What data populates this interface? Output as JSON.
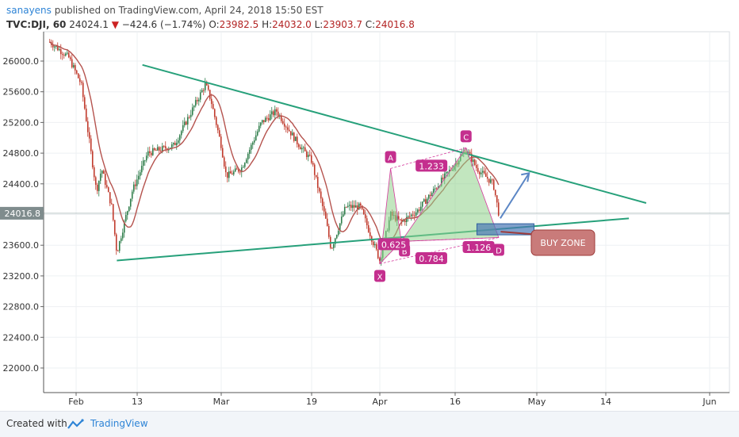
{
  "header": {
    "author": "sanayens",
    "published_text": "published on TradingView.com, April 24, 2018 15:50 EST"
  },
  "symbol_bar": {
    "symbol": "TVC:DJI, 60",
    "last": "24024.1",
    "change": "−424.6 (−1.74%)",
    "open_label": "O:",
    "open": "23982.5",
    "high_label": "H:",
    "high": "24032.0",
    "low_label": "L:",
    "low": "23903.7",
    "close_label": "C:",
    "close": "24016.8"
  },
  "footer": {
    "created_with": "Created with",
    "brand": "TradingView"
  },
  "colors": {
    "trendline": "#26a07a",
    "candle_up": "#2e7d4a",
    "candle_down": "#c0392b",
    "moving_average": "#b5534e",
    "pattern_fill": "#8fd28a",
    "pattern_edge": "#d53a9d",
    "label_bg": "#c42f8e",
    "buy_zone_box": "#4a78b5",
    "buy_zone_callout": "#c97b7a",
    "projection_arrow": "#5b86c5",
    "price_tag": "#7f8c8d"
  },
  "chart_data": {
    "type": "candlestick",
    "title": "TVC:DJI, 60",
    "ylim": [
      21600,
      26400
    ],
    "y_ticks": [
      "26000.0",
      "25600.0",
      "25200.0",
      "24800.0",
      "24400.0",
      "24000.0",
      "23600.0",
      "23200.0",
      "22800.0",
      "22400.0",
      "22000.0"
    ],
    "x_ticks": [
      "Feb",
      "13",
      "Mar",
      "19",
      "Apr",
      "16",
      "May",
      "14",
      "Jun"
    ],
    "current_price_label": "24016.8",
    "current_price": 24016.8,
    "price_path": [
      [
        "Jan 25",
        26250
      ],
      [
        "Jan 30",
        26050
      ],
      [
        "Feb 2",
        25700
      ],
      [
        "Feb 5",
        24300
      ],
      [
        "Feb 6",
        24600
      ],
      [
        "Feb 8",
        24100
      ],
      [
        "Feb 9",
        23500
      ],
      [
        "Feb 12",
        24300
      ],
      [
        "Feb 15",
        24800
      ],
      [
        "Feb 20",
        24900
      ],
      [
        "Feb 23",
        25300
      ],
      [
        "Feb 26",
        25700
      ],
      [
        "Feb 27",
        25500
      ],
      [
        "Mar 1",
        24900
      ],
      [
        "Mar 2",
        24500
      ],
      [
        "Mar 5",
        24600
      ],
      [
        "Mar 9",
        25200
      ],
      [
        "Mar 12",
        25350
      ],
      [
        "Mar 16",
        24950
      ],
      [
        "Mar 19",
        24700
      ],
      [
        "Mar 22",
        23900
      ],
      [
        "Mar 23",
        23550
      ],
      [
        "Mar 26",
        24100
      ],
      [
        "Mar 29",
        24100
      ],
      [
        "Apr 2",
        23400
      ],
      [
        "Apr 4",
        24000
      ],
      [
        "Apr 6",
        23900
      ],
      [
        "Apr 9",
        24050
      ],
      [
        "Apr 13",
        24400
      ],
      [
        "Apr 17",
        24750
      ],
      [
        "Apr 18",
        24850
      ],
      [
        "Apr 20",
        24600
      ],
      [
        "Apr 23",
        24400
      ],
      [
        "Apr 24",
        24017
      ]
    ],
    "trendlines": [
      {
        "name": "upper",
        "from": [
          "Feb 14",
          25950
        ],
        "to": [
          "May 21",
          24150
        ]
      },
      {
        "name": "lower",
        "from": [
          "Feb 9",
          23400
        ],
        "to": [
          "May 18",
          23950
        ]
      }
    ],
    "harmonic_pattern": {
      "points": [
        {
          "label": "X",
          "date": "Apr 2",
          "price": 23360
        },
        {
          "label": "A",
          "date": "Apr 4",
          "price": 24600
        },
        {
          "label": "B",
          "date": "Apr 6",
          "price": 23650
        },
        {
          "label": "C",
          "date": "Apr 18",
          "price": 24870
        },
        {
          "label": "D",
          "date": "Apr 24",
          "price": 23700
        }
      ],
      "ratios": [
        "0.625",
        "1.233",
        "1.126",
        "0.784"
      ]
    },
    "annotations": [
      {
        "text": "BUY ZONE"
      }
    ]
  }
}
